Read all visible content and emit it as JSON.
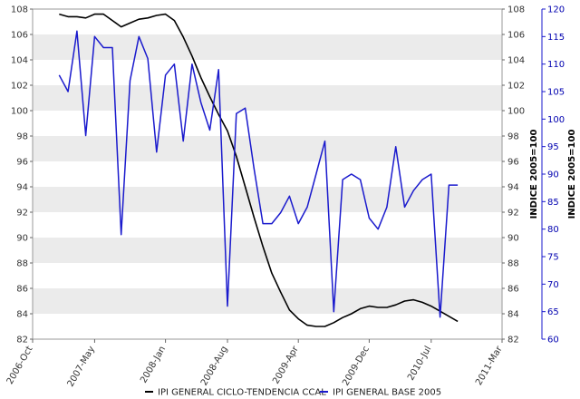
{
  "chart_data": {
    "type": "line",
    "x_ticks": [
      "2006-Oct",
      "2007-May",
      "2008-Jan",
      "2008-Aug",
      "2009-Apr",
      "2009-Dec",
      "2010-Jul",
      "2011-Mar"
    ],
    "y_left": {
      "range": [
        82,
        108
      ],
      "ticks": [
        "82",
        "84",
        "86",
        "88",
        "90",
        "92",
        "94",
        "96",
        "98",
        "100",
        "102",
        "104",
        "106",
        "108"
      ]
    },
    "y_right_inner": {
      "range": [
        82,
        108
      ],
      "ticks": [
        "82",
        "84",
        "86",
        "88",
        "90",
        "92",
        "94",
        "96",
        "98",
        "100",
        "102",
        "104",
        "106",
        "108"
      ],
      "label": "INDICE 2005=100"
    },
    "y_right_outer": {
      "range": [
        60,
        120
      ],
      "ticks": [
        "60",
        "65",
        "70",
        "75",
        "80",
        "85",
        "90",
        "95",
        "100",
        "105",
        "110",
        "115",
        "120"
      ],
      "label": "INDICE 2005=100"
    },
    "x_months_per_unit": 1,
    "series": [
      {
        "name": "IPI GENERAL CICLO-TENDENCIA CCAL",
        "color": "#000000",
        "axis": "left",
        "x": [
          "2007-Jan",
          "2007-Feb",
          "2007-Mar",
          "2007-Apr",
          "2007-May",
          "2007-Jun",
          "2007-Jul",
          "2007-Aug",
          "2007-Sep",
          "2007-Oct",
          "2007-Nov",
          "2007-Dec",
          "2008-Jan",
          "2008-Feb",
          "2008-Mar",
          "2008-Apr",
          "2008-May",
          "2008-Jun",
          "2008-Jul",
          "2008-Aug",
          "2008-Sep",
          "2008-Oct",
          "2008-Nov",
          "2008-Dec",
          "2009-Jan",
          "2009-Feb",
          "2009-Mar",
          "2009-Apr",
          "2009-May",
          "2009-Jun",
          "2009-Jul",
          "2009-Aug",
          "2009-Sep",
          "2009-Oct",
          "2009-Nov",
          "2009-Dec",
          "2010-Jan",
          "2010-Feb",
          "2010-Mar",
          "2010-Apr",
          "2010-May",
          "2010-Jun",
          "2010-Jul",
          "2010-Aug",
          "2010-Sep",
          "2010-Oct"
        ],
        "values": [
          107.6,
          107.4,
          107.4,
          107.3,
          107.6,
          107.6,
          107.1,
          106.6,
          106.9,
          107.2,
          107.3,
          107.5,
          107.6,
          107.1,
          105.8,
          104.3,
          102.6,
          101.1,
          99.7,
          98.4,
          96.4,
          94.0,
          91.6,
          89.3,
          87.2,
          85.7,
          84.3,
          83.6,
          83.1,
          83.0,
          83.0,
          83.3,
          83.7,
          84.0,
          84.4,
          84.6,
          84.5,
          84.5,
          84.7,
          85.0,
          85.1,
          84.9,
          84.6,
          84.2,
          83.8,
          83.4
        ]
      },
      {
        "name": "IPI GENERAL BASE 2005",
        "color": "#1a1acd",
        "axis": "right_outer",
        "x": [
          "2007-Jan",
          "2007-Feb",
          "2007-Mar",
          "2007-Apr",
          "2007-May",
          "2007-Jun",
          "2007-Jul",
          "2007-Aug",
          "2007-Sep",
          "2007-Oct",
          "2007-Nov",
          "2007-Dec",
          "2008-Jan",
          "2008-Feb",
          "2008-Mar",
          "2008-Apr",
          "2008-May",
          "2008-Jun",
          "2008-Jul",
          "2008-Aug",
          "2008-Sep",
          "2008-Oct",
          "2008-Nov",
          "2008-Dec",
          "2009-Jan",
          "2009-Feb",
          "2009-Mar",
          "2009-Apr",
          "2009-May",
          "2009-Jun",
          "2009-Jul",
          "2009-Aug",
          "2009-Sep",
          "2009-Oct",
          "2009-Nov",
          "2009-Dec",
          "2010-Jan",
          "2010-Feb",
          "2010-Mar",
          "2010-Apr",
          "2010-May",
          "2010-Jun",
          "2010-Jul",
          "2010-Aug",
          "2010-Sep",
          "2010-Oct"
        ],
        "values": [
          108,
          105,
          116,
          97,
          115,
          113,
          113,
          79,
          107,
          115,
          111,
          94,
          108,
          110,
          96,
          110,
          103,
          98,
          109,
          66,
          101,
          102,
          91,
          81,
          81,
          83,
          86,
          81,
          84,
          90,
          96,
          65,
          89,
          90,
          89,
          82,
          80,
          84,
          95,
          84,
          87,
          89,
          90,
          64,
          88,
          88
        ]
      }
    ],
    "legend": {
      "position": "bottom"
    },
    "grid": "horizontal bands"
  }
}
